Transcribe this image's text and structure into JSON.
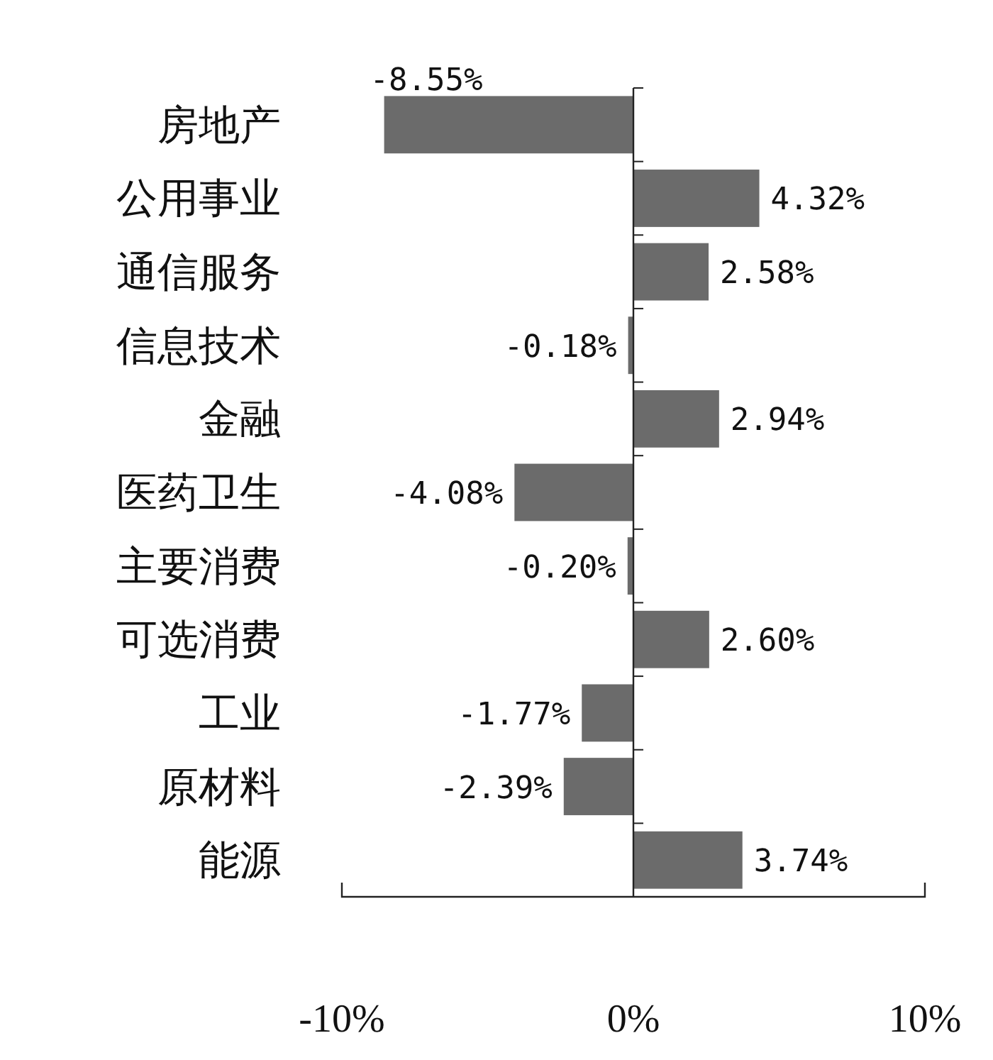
{
  "chart_data": {
    "type": "bar",
    "orientation": "horizontal",
    "categories": [
      "房地产",
      "公用事业",
      "通信服务",
      "信息技术",
      "金融",
      "医药卫生",
      "主要消费",
      "可选消费",
      "工业",
      "原材料",
      "能源"
    ],
    "values": [
      -8.55,
      4.32,
      2.58,
      -0.18,
      2.94,
      -4.08,
      -0.2,
      2.6,
      -1.77,
      -2.39,
      3.74
    ],
    "value_labels": [
      "-8.55%",
      "4.32%",
      "2.58%",
      "-0.18%",
      "2.94%",
      "-4.08%",
      "-0.20%",
      "2.60%",
      "-1.77%",
      "-2.39%",
      "3.74%"
    ],
    "color": "#6b6b6b",
    "xlim": [
      -10,
      10
    ],
    "xticks": [
      {
        "value": -10,
        "label": "-10%"
      },
      {
        "value": 0,
        "label": "0%"
      },
      {
        "value": 10,
        "label": "10%"
      }
    ],
    "tick_labels": true
  }
}
